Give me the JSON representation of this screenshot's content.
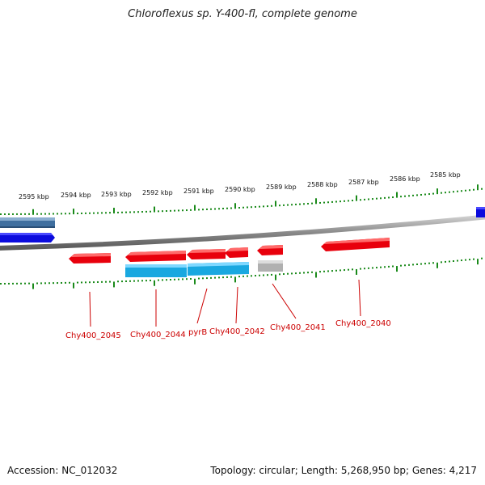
{
  "title": "Chloroflexus sp. Y-400-fl, complete genome",
  "footer": {
    "accession": "Accession: NC_012032",
    "summary": "Topology: circular; Length: 5,268,950 bp; Genes: 4,217"
  },
  "scale_labels": [
    "2595 kbp",
    "2594 kbp",
    "2593 kbp",
    "2592 kbp",
    "2591 kbp",
    "2590 kbp",
    "2589 kbp",
    "2588 kbp",
    "2587 kbp",
    "2586 kbp",
    "2585 kbp"
  ],
  "gene_labels": [
    "Chy400_2045",
    "Chy400_2044",
    "pyrB",
    "Chy400_2042",
    "Chy400_2041",
    "Chy400_2040"
  ],
  "colors": {
    "forward_gene": "#e8000c",
    "cds_cyan": "#19a8e0",
    "reverse_blue": "#0b0bdd",
    "slate_blue": "#3f6f9f",
    "gray_gene": "#b0b0b0",
    "tick_green": "#1a8a1a",
    "label_red": "#cc0000"
  }
}
